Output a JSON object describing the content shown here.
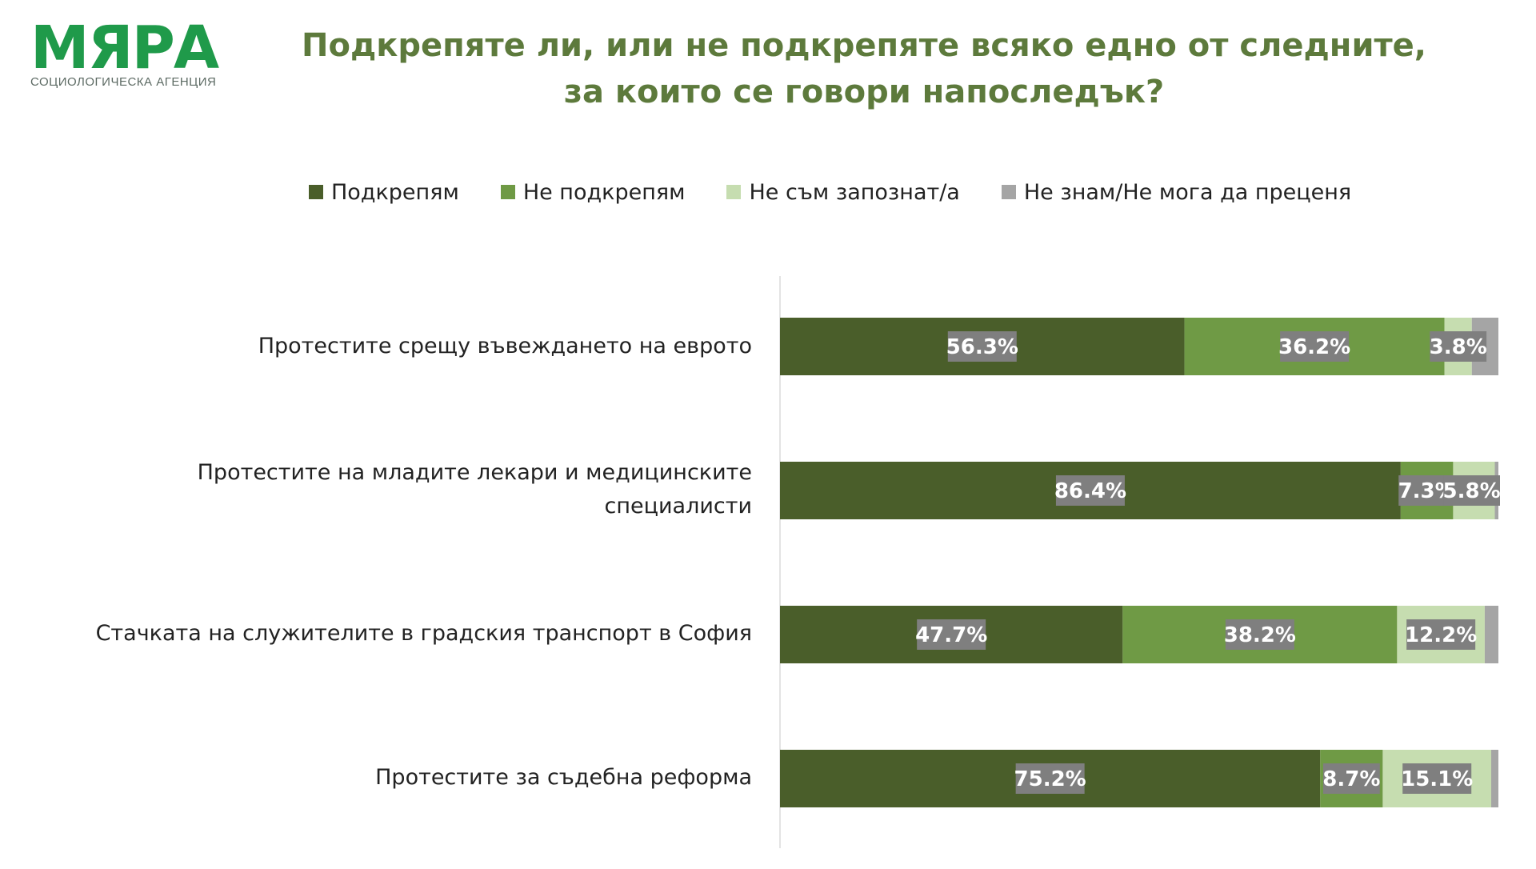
{
  "logo": {
    "word": "МЯРА",
    "subtitle": "СОЦИОЛОГИЧЕСКА АГЕНЦИЯ"
  },
  "chart_data": {
    "type": "bar",
    "orientation": "horizontal",
    "stacked": true,
    "title_line1": "Подкрепяте ли, или не подкрепяте всяко едно от следните,",
    "title_line2": "за които се говори напоследък?",
    "legend_position": "top",
    "categories": [
      "Протестите срещу въвеждането на еврото",
      "Протестите на младите лекари и медицинските специалисти",
      "Стачката на служителите в градския транспорт в София",
      "Протестите за съдебна реформа"
    ],
    "series": [
      {
        "name": "Подкрепям",
        "color": "#4a5e2a",
        "values": [
          56.3,
          86.4,
          47.7,
          75.2
        ],
        "labels": [
          "56.3%",
          "86.4%",
          "47.7%",
          "75.2%"
        ]
      },
      {
        "name": "Не подкрепям",
        "color": "#6f9a45",
        "values": [
          36.2,
          7.3,
          38.2,
          8.7
        ],
        "labels": [
          "36.2%",
          "7.3%",
          "38.2%",
          "8.7%"
        ]
      },
      {
        "name": "Не съм запознат/а",
        "color": "#c6ddb0",
        "values": [
          3.8,
          5.8,
          12.2,
          15.1
        ],
        "labels": [
          "3.8%",
          "5.8%",
          "12.2%",
          "15.1%"
        ]
      },
      {
        "name": "Не знам/Не мога да преценя",
        "color": "#a5a5a5",
        "values": [
          3.7,
          0.5,
          1.9,
          1.0
        ],
        "labels": [
          "",
          "",
          "",
          ""
        ]
      }
    ],
    "xlim": [
      0,
      100
    ],
    "grid": false,
    "label_box_color": "#7f7f7f",
    "label_text_color": "#ffffff"
  }
}
